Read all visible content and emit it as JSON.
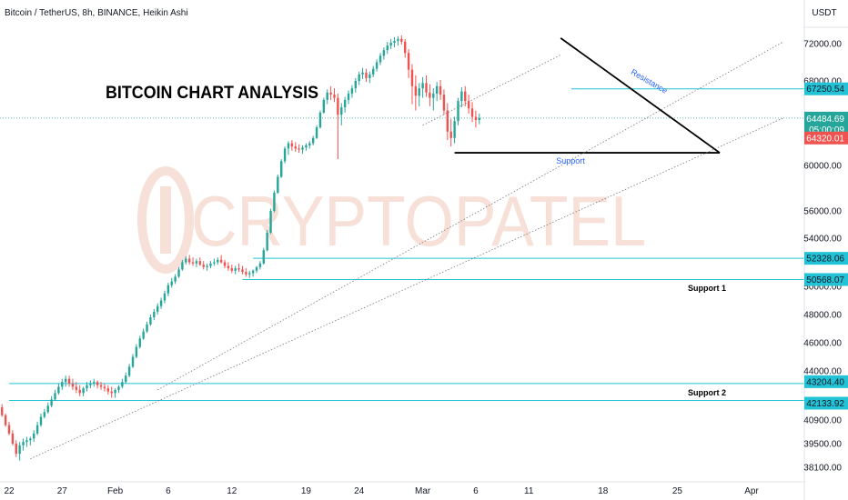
{
  "header": {
    "title": "Bitcoin / TetherUS, 8h, BINANCE, Heikin Ashi"
  },
  "currency": "USDT",
  "watermark": "CRYPTOPATEL",
  "chart_title": "BITCOIN CHART ANALYSIS",
  "colors": {
    "up": "#26a69a",
    "down": "#ef5350",
    "level": "#22c3d6",
    "trend": "#000000",
    "annotation": "#2962ff",
    "watermark": "#f4d3c8"
  },
  "chart_data": {
    "type": "candlestick",
    "ylim": [
      38100,
      72000
    ],
    "y_ticks": [
      {
        "value": 72000,
        "label": "72000.00"
      },
      {
        "value": 68000,
        "label": "68000.00"
      },
      {
        "value": 60000,
        "label": "60000.00"
      },
      {
        "value": 56000,
        "label": "56000.00"
      },
      {
        "value": 54000,
        "label": "54000.00"
      },
      {
        "value": 50000,
        "label": "50000.00"
      },
      {
        "value": 48000,
        "label": "48000.00"
      },
      {
        "value": 46000,
        "label": "46000.00"
      },
      {
        "value": 44000,
        "label": "44000.00"
      },
      {
        "value": 40900,
        "label": "40900.00"
      },
      {
        "value": 39500,
        "label": "39500.00"
      },
      {
        "value": 38100,
        "label": "38100.00"
      }
    ],
    "x_ticks": [
      {
        "date": "2024-01-22",
        "label": "22"
      },
      {
        "date": "2024-01-27",
        "label": "27"
      },
      {
        "date": "2024-02-01",
        "label": "Feb"
      },
      {
        "date": "2024-02-06",
        "label": "6"
      },
      {
        "date": "2024-02-12",
        "label": "12"
      },
      {
        "date": "2024-02-19",
        "label": "19"
      },
      {
        "date": "2024-02-24",
        "label": "24"
      },
      {
        "date": "2024-03-01",
        "label": "Mar"
      },
      {
        "date": "2024-03-06",
        "label": "6"
      },
      {
        "date": "2024-03-11",
        "label": "11"
      },
      {
        "date": "2024-03-18",
        "label": "18"
      },
      {
        "date": "2024-03-25",
        "label": "25"
      },
      {
        "date": "2024-04-01",
        "label": "Apr"
      }
    ],
    "price_labels": [
      {
        "value": 67250.54,
        "label": "67250.54",
        "kind": "level"
      },
      {
        "value": 64484.69,
        "label": "64484.69",
        "sub": "05:00:09",
        "kind": "last"
      },
      {
        "value": 64320.01,
        "label": "64320.01",
        "kind": "current"
      },
      {
        "value": 52328.06,
        "label": "52328.06",
        "kind": "level"
      },
      {
        "value": 50568.07,
        "label": "50568.07",
        "kind": "level"
      },
      {
        "value": 43204.4,
        "label": "43204.40",
        "kind": "level"
      },
      {
        "value": 42133.92,
        "label": "42133.92",
        "kind": "level"
      }
    ],
    "horizontal_levels": [
      {
        "value": 67250.54,
        "from": "2024-03-15"
      },
      {
        "value": 52328.06,
        "from": "2024-02-14"
      },
      {
        "value": 50568.07,
        "from": "2024-02-13"
      },
      {
        "value": 43204.4,
        "from": "2024-01-22"
      },
      {
        "value": 42133.92,
        "from": "2024-01-22"
      }
    ],
    "annotations": [
      {
        "text": "Resistance",
        "kind": "resistance"
      },
      {
        "text": "Support",
        "kind": "support"
      },
      {
        "text": "Support 1",
        "kind": "support1"
      },
      {
        "text": "Support 2",
        "kind": "support2"
      }
    ],
    "trend_lines": [
      {
        "kind": "resistance",
        "x1": "2024-03-14",
        "y1": 72600,
        "x2": "2024-03-29",
        "y2": 61200
      },
      {
        "kind": "support",
        "x1": "2024-03-04",
        "y1": 61200,
        "x2": "2024-03-29",
        "y2": 61200
      },
      {
        "kind": "trend-dotted",
        "x1": "2024-01-24",
        "y1": 38600,
        "x2": "2024-04-04",
        "y2": 64500
      },
      {
        "kind": "trend-dotted",
        "x1": "2024-02-05",
        "y1": 42800,
        "x2": "2024-04-04",
        "y2": 72200
      },
      {
        "kind": "trend-dotted",
        "x1": "2024-03-01",
        "y1": 63800,
        "x2": "2024-03-14",
        "y2": 70800
      }
    ],
    "candles": [
      {
        "o": 41900,
        "h": 42300,
        "l": 41500,
        "c": 41700
      },
      {
        "o": 41700,
        "h": 41900,
        "l": 41100,
        "c": 41200
      },
      {
        "o": 41200,
        "h": 41300,
        "l": 40500,
        "c": 40600
      },
      {
        "o": 40600,
        "h": 40800,
        "l": 40000,
        "c": 40100
      },
      {
        "o": 40100,
        "h": 40300,
        "l": 39400,
        "c": 39500
      },
      {
        "o": 39500,
        "h": 39700,
        "l": 38700,
        "c": 38900
      },
      {
        "o": 38900,
        "h": 39600,
        "l": 38500,
        "c": 39400
      },
      {
        "o": 39400,
        "h": 39800,
        "l": 39100,
        "c": 39600
      },
      {
        "o": 39600,
        "h": 39900,
        "l": 39300,
        "c": 39700
      },
      {
        "o": 39700,
        "h": 39900,
        "l": 39400,
        "c": 39800
      },
      {
        "o": 39800,
        "h": 40300,
        "l": 39600,
        "c": 40100
      },
      {
        "o": 40100,
        "h": 40800,
        "l": 40000,
        "c": 40600
      },
      {
        "o": 40600,
        "h": 41300,
        "l": 40500,
        "c": 41100
      },
      {
        "o": 41100,
        "h": 41600,
        "l": 41000,
        "c": 41400
      },
      {
        "o": 41400,
        "h": 42000,
        "l": 41300,
        "c": 41800
      },
      {
        "o": 41800,
        "h": 42400,
        "l": 41700,
        "c": 42200
      },
      {
        "o": 42200,
        "h": 42800,
        "l": 42100,
        "c": 42600
      },
      {
        "o": 42600,
        "h": 43200,
        "l": 42500,
        "c": 43000
      },
      {
        "o": 43000,
        "h": 43500,
        "l": 42800,
        "c": 43300
      },
      {
        "o": 43300,
        "h": 43700,
        "l": 43000,
        "c": 43500
      },
      {
        "o": 43500,
        "h": 43700,
        "l": 43000,
        "c": 43200
      },
      {
        "o": 43200,
        "h": 43500,
        "l": 42800,
        "c": 43000
      },
      {
        "o": 43000,
        "h": 43300,
        "l": 42600,
        "c": 42800
      },
      {
        "o": 42800,
        "h": 43100,
        "l": 42400,
        "c": 42600
      },
      {
        "o": 42600,
        "h": 43000,
        "l": 42400,
        "c": 42900
      },
      {
        "o": 42900,
        "h": 43300,
        "l": 42700,
        "c": 43100
      },
      {
        "o": 43100,
        "h": 43400,
        "l": 42900,
        "c": 43200
      },
      {
        "o": 43200,
        "h": 43500,
        "l": 43000,
        "c": 43300
      },
      {
        "o": 43300,
        "h": 43400,
        "l": 42900,
        "c": 43100
      },
      {
        "o": 43100,
        "h": 43300,
        "l": 42800,
        "c": 43000
      },
      {
        "o": 43000,
        "h": 43200,
        "l": 42700,
        "c": 42900
      },
      {
        "o": 42900,
        "h": 43100,
        "l": 42500,
        "c": 42700
      },
      {
        "o": 42700,
        "h": 43000,
        "l": 42300,
        "c": 42600
      },
      {
        "o": 42600,
        "h": 42900,
        "l": 42300,
        "c": 42800
      },
      {
        "o": 42800,
        "h": 43100,
        "l": 42600,
        "c": 43000
      },
      {
        "o": 43000,
        "h": 43500,
        "l": 42900,
        "c": 43300
      },
      {
        "o": 43300,
        "h": 43900,
        "l": 43200,
        "c": 43700
      },
      {
        "o": 43700,
        "h": 44500,
        "l": 43600,
        "c": 44300
      },
      {
        "o": 44300,
        "h": 45200,
        "l": 44200,
        "c": 45000
      },
      {
        "o": 45000,
        "h": 45900,
        "l": 44900,
        "c": 45700
      },
      {
        "o": 45700,
        "h": 46500,
        "l": 45600,
        "c": 46300
      },
      {
        "o": 46300,
        "h": 47000,
        "l": 46200,
        "c": 46800
      },
      {
        "o": 46800,
        "h": 47500,
        "l": 46700,
        "c": 47300
      },
      {
        "o": 47300,
        "h": 48000,
        "l": 47200,
        "c": 47800
      },
      {
        "o": 47800,
        "h": 48400,
        "l": 47600,
        "c": 48200
      },
      {
        "o": 48200,
        "h": 48800,
        "l": 48000,
        "c": 48600
      },
      {
        "o": 48600,
        "h": 49200,
        "l": 48400,
        "c": 49000
      },
      {
        "o": 49000,
        "h": 49700,
        "l": 48800,
        "c": 49500
      },
      {
        "o": 49500,
        "h": 50300,
        "l": 49300,
        "c": 50100
      },
      {
        "o": 50100,
        "h": 50700,
        "l": 49900,
        "c": 50400
      },
      {
        "o": 50400,
        "h": 51000,
        "l": 50200,
        "c": 50800
      },
      {
        "o": 50800,
        "h": 51600,
        "l": 50700,
        "c": 51400
      },
      {
        "o": 51400,
        "h": 52200,
        "l": 51300,
        "c": 52000
      },
      {
        "o": 52000,
        "h": 52500,
        "l": 51800,
        "c": 52300
      },
      {
        "o": 52300,
        "h": 52600,
        "l": 51800,
        "c": 52000
      },
      {
        "o": 52000,
        "h": 52400,
        "l": 51700,
        "c": 51900
      },
      {
        "o": 51900,
        "h": 52300,
        "l": 51600,
        "c": 52100
      },
      {
        "o": 52100,
        "h": 52400,
        "l": 51700,
        "c": 51800
      },
      {
        "o": 51800,
        "h": 52100,
        "l": 51400,
        "c": 51600
      },
      {
        "o": 51600,
        "h": 51900,
        "l": 51300,
        "c": 51700
      },
      {
        "o": 51700,
        "h": 52100,
        "l": 51500,
        "c": 51900
      },
      {
        "o": 51900,
        "h": 52300,
        "l": 51700,
        "c": 52000
      },
      {
        "o": 52000,
        "h": 52400,
        "l": 51800,
        "c": 52200
      },
      {
        "o": 52200,
        "h": 52600,
        "l": 51900,
        "c": 52000
      },
      {
        "o": 52000,
        "h": 52200,
        "l": 51500,
        "c": 51700
      },
      {
        "o": 51700,
        "h": 52000,
        "l": 51300,
        "c": 51500
      },
      {
        "o": 51500,
        "h": 51800,
        "l": 51100,
        "c": 51300
      },
      {
        "o": 51300,
        "h": 51700,
        "l": 51000,
        "c": 51500
      },
      {
        "o": 51500,
        "h": 51900,
        "l": 51200,
        "c": 51400
      },
      {
        "o": 51400,
        "h": 51700,
        "l": 51000,
        "c": 51200
      },
      {
        "o": 51200,
        "h": 51500,
        "l": 50800,
        "c": 51000
      },
      {
        "o": 51000,
        "h": 51300,
        "l": 50700,
        "c": 51100
      },
      {
        "o": 51100,
        "h": 51400,
        "l": 50800,
        "c": 51300
      },
      {
        "o": 51300,
        "h": 51700,
        "l": 51100,
        "c": 51600
      },
      {
        "o": 51600,
        "h": 52100,
        "l": 51400,
        "c": 51900
      },
      {
        "o": 51900,
        "h": 53200,
        "l": 51800,
        "c": 53000
      },
      {
        "o": 53000,
        "h": 54600,
        "l": 52900,
        "c": 54400
      },
      {
        "o": 54400,
        "h": 56200,
        "l": 54300,
        "c": 56000
      },
      {
        "o": 56000,
        "h": 57800,
        "l": 55900,
        "c": 57600
      },
      {
        "o": 57600,
        "h": 59200,
        "l": 57500,
        "c": 59000
      },
      {
        "o": 59000,
        "h": 60600,
        "l": 58900,
        "c": 60400
      },
      {
        "o": 60400,
        "h": 61800,
        "l": 60200,
        "c": 61600
      },
      {
        "o": 61600,
        "h": 62300,
        "l": 61000,
        "c": 62100
      },
      {
        "o": 62100,
        "h": 62400,
        "l": 61400,
        "c": 61800
      },
      {
        "o": 61800,
        "h": 62200,
        "l": 61300,
        "c": 61600
      },
      {
        "o": 61600,
        "h": 62000,
        "l": 61200,
        "c": 61500
      },
      {
        "o": 61500,
        "h": 61900,
        "l": 61100,
        "c": 61700
      },
      {
        "o": 61700,
        "h": 62100,
        "l": 61400,
        "c": 61900
      },
      {
        "o": 61900,
        "h": 62300,
        "l": 61600,
        "c": 62100
      },
      {
        "o": 62100,
        "h": 62800,
        "l": 61900,
        "c": 62600
      },
      {
        "o": 62600,
        "h": 63800,
        "l": 62500,
        "c": 63600
      },
      {
        "o": 63600,
        "h": 65200,
        "l": 63500,
        "c": 65000
      },
      {
        "o": 65000,
        "h": 66400,
        "l": 64900,
        "c": 66200
      },
      {
        "o": 66200,
        "h": 67200,
        "l": 65800,
        "c": 66900
      },
      {
        "o": 66900,
        "h": 67500,
        "l": 66200,
        "c": 66700
      },
      {
        "o": 66700,
        "h": 67300,
        "l": 66000,
        "c": 66400
      },
      {
        "o": 66400,
        "h": 66800,
        "l": 60600,
        "c": 64800
      },
      {
        "o": 64800,
        "h": 65900,
        "l": 63800,
        "c": 65500
      },
      {
        "o": 65500,
        "h": 66500,
        "l": 65000,
        "c": 66200
      },
      {
        "o": 66200,
        "h": 67100,
        "l": 65800,
        "c": 66800
      },
      {
        "o": 66800,
        "h": 67600,
        "l": 66400,
        "c": 67300
      },
      {
        "o": 67300,
        "h": 68300,
        "l": 66900,
        "c": 68000
      },
      {
        "o": 68000,
        "h": 69000,
        "l": 67600,
        "c": 68700
      },
      {
        "o": 68700,
        "h": 69400,
        "l": 68200,
        "c": 68900
      },
      {
        "o": 68900,
        "h": 69300,
        "l": 67900,
        "c": 68300
      },
      {
        "o": 68300,
        "h": 69000,
        "l": 67800,
        "c": 68700
      },
      {
        "o": 68700,
        "h": 69600,
        "l": 68400,
        "c": 69300
      },
      {
        "o": 69300,
        "h": 70300,
        "l": 69000,
        "c": 70000
      },
      {
        "o": 70000,
        "h": 71000,
        "l": 69700,
        "c": 70700
      },
      {
        "o": 70700,
        "h": 71600,
        "l": 70300,
        "c": 71300
      },
      {
        "o": 71300,
        "h": 72200,
        "l": 70900,
        "c": 71800
      },
      {
        "o": 71800,
        "h": 72500,
        "l": 71400,
        "c": 72100
      },
      {
        "o": 72100,
        "h": 72700,
        "l": 71600,
        "c": 72300
      },
      {
        "o": 72300,
        "h": 72800,
        "l": 71800,
        "c": 72500
      },
      {
        "o": 72500,
        "h": 72900,
        "l": 71900,
        "c": 72200
      },
      {
        "o": 72200,
        "h": 72500,
        "l": 70500,
        "c": 71000
      },
      {
        "o": 71000,
        "h": 71400,
        "l": 68300,
        "c": 69200
      },
      {
        "o": 69200,
        "h": 69800,
        "l": 65800,
        "c": 67500
      },
      {
        "o": 67500,
        "h": 68600,
        "l": 65200,
        "c": 66600
      },
      {
        "o": 66600,
        "h": 67800,
        "l": 65600,
        "c": 67300
      },
      {
        "o": 67300,
        "h": 68400,
        "l": 66400,
        "c": 67800
      },
      {
        "o": 67800,
        "h": 68600,
        "l": 66500,
        "c": 66900
      },
      {
        "o": 66900,
        "h": 67700,
        "l": 65600,
        "c": 66400
      },
      {
        "o": 66400,
        "h": 67300,
        "l": 65200,
        "c": 66800
      },
      {
        "o": 66800,
        "h": 67900,
        "l": 66100,
        "c": 67500
      },
      {
        "o": 67500,
        "h": 68100,
        "l": 66200,
        "c": 66700
      },
      {
        "o": 66700,
        "h": 67200,
        "l": 64800,
        "c": 65200
      },
      {
        "o": 65200,
        "h": 65900,
        "l": 62400,
        "c": 63200
      },
      {
        "o": 63200,
        "h": 64400,
        "l": 61800,
        "c": 62600
      },
      {
        "o": 62600,
        "h": 64600,
        "l": 62100,
        "c": 64200
      },
      {
        "o": 64200,
        "h": 66400,
        "l": 63800,
        "c": 66100
      },
      {
        "o": 66100,
        "h": 67400,
        "l": 65500,
        "c": 67000
      },
      {
        "o": 67000,
        "h": 67500,
        "l": 65600,
        "c": 66100
      },
      {
        "o": 66100,
        "h": 66700,
        "l": 64900,
        "c": 65400
      },
      {
        "o": 65400,
        "h": 66000,
        "l": 64100,
        "c": 64600
      },
      {
        "o": 64600,
        "h": 65200,
        "l": 63600,
        "c": 64300
      },
      {
        "o": 64300,
        "h": 64900,
        "l": 63900,
        "c": 64485
      }
    ]
  },
  "x_axis_dates": {
    "first_candle": "2024-01-21T00:00",
    "interval_hours": 8
  }
}
